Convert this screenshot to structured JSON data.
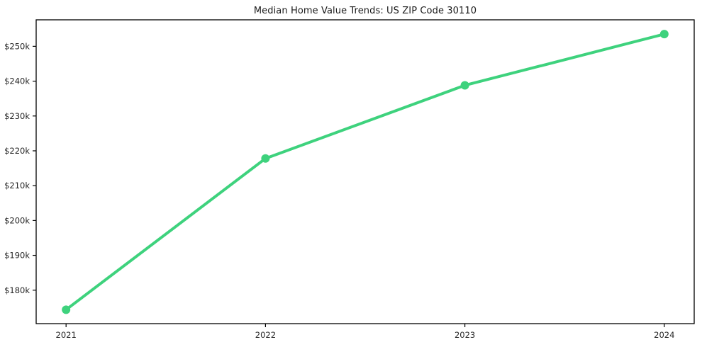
{
  "chart_data": {
    "type": "line",
    "title": "Median Home Value Trends: US ZIP Code 30110",
    "x": [
      2021,
      2022,
      2023,
      2024
    ],
    "series": [
      {
        "name": "Median Home Value",
        "values": [
          174400,
          217800,
          238800,
          253500
        ]
      }
    ],
    "x_tick_labels": [
      "2021",
      "2022",
      "2023",
      "2024"
    ],
    "y_ticks": [
      {
        "value": 180000,
        "label": "$180k"
      },
      {
        "value": 190000,
        "label": "$190k"
      },
      {
        "value": 200000,
        "label": "$200k"
      },
      {
        "value": 210000,
        "label": "$210k"
      },
      {
        "value": 220000,
        "label": "$220k"
      },
      {
        "value": 230000,
        "label": "$230k"
      },
      {
        "value": 240000,
        "label": "$240k"
      },
      {
        "value": 250000,
        "label": "$250k"
      }
    ],
    "xlim": [
      2020.85,
      2024.15
    ],
    "ylim": [
      170400,
      257600
    ],
    "grid": false,
    "legend": "none",
    "line_color": "#3ed27d",
    "marker": "circle",
    "line_width": 4,
    "marker_radius": 6,
    "axis_color": "#000000",
    "tick_label_color": "#262626",
    "background_color": "#ffffff"
  }
}
